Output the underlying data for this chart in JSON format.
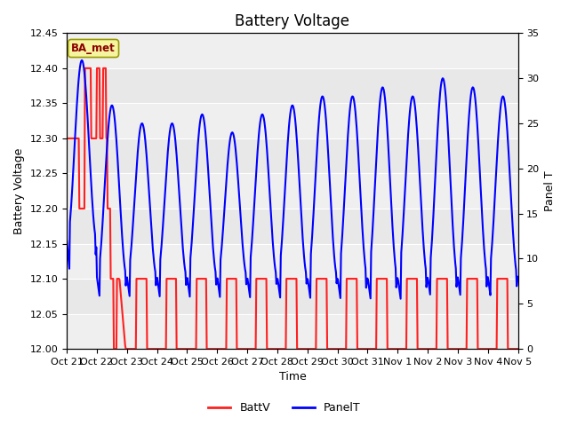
{
  "title": "Battery Voltage",
  "ylabel_left": "Battery Voltage",
  "ylabel_right": "Panel T",
  "xlabel": "Time",
  "ylim_left": [
    12.0,
    12.45
  ],
  "ylim_right": [
    0,
    35
  ],
  "background_color": "#ffffff",
  "plot_bg_color": "#e8e8e8",
  "annotation_text": "BA_met",
  "annotation_bg": "#f5f5a0",
  "annotation_border": "#999900",
  "x_tick_labels": [
    "Oct 21",
    "Oct 22",
    "Oct 23",
    "Oct 24",
    "Oct 25",
    "Oct 26",
    "Oct 27",
    "Oct 28",
    "Oct 29",
    "Oct 30",
    "Oct 31",
    "Nov 1",
    "Nov 2",
    "Nov 3",
    "Nov 4",
    "Nov 5"
  ],
  "batt_color": "#ff2020",
  "panel_color": "#0000ff",
  "legend_labels": [
    "BattV",
    "PanelT"
  ],
  "title_fontsize": 12,
  "axis_fontsize": 9,
  "tick_fontsize": 8,
  "left_yticks": [
    12.0,
    12.05,
    12.1,
    12.15,
    12.2,
    12.25,
    12.3,
    12.35,
    12.4,
    12.45
  ],
  "right_yticks": [
    0,
    5,
    10,
    15,
    20,
    25,
    30,
    35
  ],
  "n_days": 15
}
